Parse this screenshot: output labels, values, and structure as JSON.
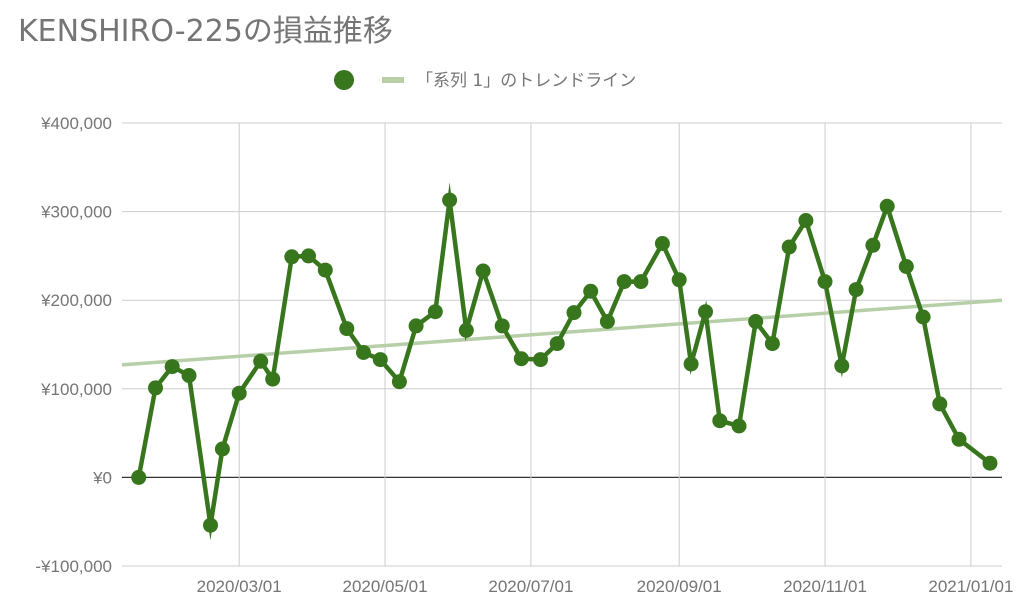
{
  "chart_data": {
    "type": "line",
    "title": "KENSHIRO-225の損益推移",
    "xlabel": "",
    "ylabel": "",
    "ylim": [
      -100000,
      400000
    ],
    "yticks": [
      400000,
      300000,
      200000,
      100000,
      0,
      -100000
    ],
    "ytick_labels": [
      "¥400,000",
      "¥300,000",
      "¥200,000",
      "¥100,000",
      "¥0",
      "-¥100,000"
    ],
    "xlim": [
      "2020-01-12",
      "2021-01-14"
    ],
    "xticks": [
      "2020-03-01",
      "2020-05-01",
      "2020-07-01",
      "2020-09-01",
      "2020-11-01",
      "2021-01-01"
    ],
    "xtick_labels": [
      "2020/03/01",
      "2020/05/01",
      "2020/07/01",
      "2020/09/01",
      "2020/11/01",
      "2021/01/01"
    ],
    "grid": true,
    "legend_position": "top",
    "legend_marker_label": "",
    "trendline_label": "「系列 1」のトレンドライン",
    "series": [
      {
        "color": "#38761d",
        "points": [
          [
            "2020-01-19",
            0
          ],
          [
            "2020-01-26",
            101000
          ],
          [
            "2020-02-02",
            125000
          ],
          [
            "2020-02-09",
            115000
          ],
          [
            "2020-02-18",
            -54000
          ],
          [
            "2020-02-23",
            32000
          ],
          [
            "2020-03-01",
            95000
          ],
          [
            "2020-03-10",
            131000
          ],
          [
            "2020-03-15",
            111000
          ],
          [
            "2020-03-23",
            249000
          ],
          [
            "2020-03-30",
            250000
          ],
          [
            "2020-04-06",
            234000
          ],
          [
            "2020-04-15",
            168000
          ],
          [
            "2020-04-22",
            141000
          ],
          [
            "2020-04-29",
            133000
          ],
          [
            "2020-05-07",
            108000
          ],
          [
            "2020-05-14",
            171000
          ],
          [
            "2020-05-22",
            187000
          ],
          [
            "2020-05-28",
            313000
          ],
          [
            "2020-06-04",
            166000
          ],
          [
            "2020-06-11",
            233000
          ],
          [
            "2020-06-19",
            171000
          ],
          [
            "2020-06-27",
            134000
          ],
          [
            "2020-07-05",
            133000
          ],
          [
            "2020-07-12",
            151000
          ],
          [
            "2020-07-19",
            186000
          ],
          [
            "2020-07-26",
            210000
          ],
          [
            "2020-08-02",
            176000
          ],
          [
            "2020-08-09",
            221000
          ],
          [
            "2020-08-16",
            221000
          ],
          [
            "2020-08-25",
            264000
          ],
          [
            "2020-09-01",
            223000
          ],
          [
            "2020-09-06",
            128000
          ],
          [
            "2020-09-12",
            187000
          ],
          [
            "2020-09-18",
            64000
          ],
          [
            "2020-09-26",
            58000
          ],
          [
            "2020-10-03",
            176000
          ],
          [
            "2020-10-10",
            151000
          ],
          [
            "2020-10-17",
            260000
          ],
          [
            "2020-10-24",
            290000
          ],
          [
            "2020-11-01",
            221000
          ],
          [
            "2020-11-08",
            126000
          ],
          [
            "2020-11-14",
            212000
          ],
          [
            "2020-11-21",
            262000
          ],
          [
            "2020-11-27",
            306000
          ],
          [
            "2020-12-05",
            238000
          ],
          [
            "2020-12-12",
            181000
          ],
          [
            "2020-12-19",
            83000
          ],
          [
            "2020-12-27",
            43000
          ],
          [
            "2021-01-09",
            16000
          ]
        ]
      }
    ],
    "trendline": {
      "color": "#b6cfa8",
      "points": [
        [
          "2020-01-12",
          127000
        ],
        [
          "2021-01-14",
          200000
        ]
      ]
    }
  }
}
